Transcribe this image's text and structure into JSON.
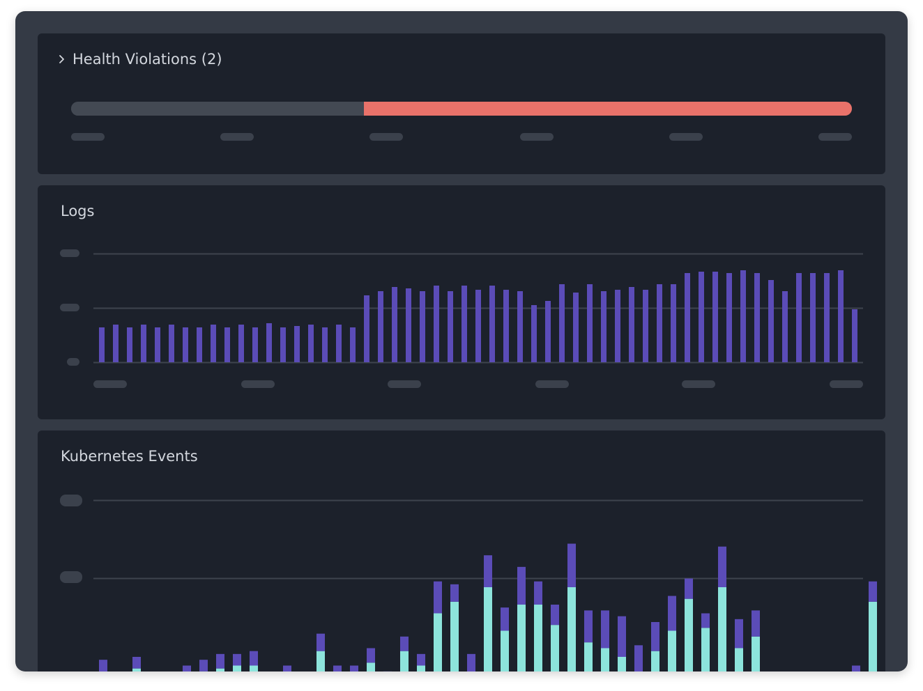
{
  "health": {
    "title": "Health Violations (2)",
    "ok_fraction": 0.375,
    "colors": {
      "ok": "#434953",
      "violation": "#e9726a"
    }
  },
  "logs": {
    "title": "Logs",
    "chart_data": {
      "type": "bar",
      "series": [
        {
          "color": "#5b4cb8",
          "values": [
            25,
            27,
            25,
            27,
            25,
            27,
            25,
            25,
            27,
            25,
            27,
            25,
            28,
            25,
            26,
            27,
            25,
            27,
            25,
            48,
            51,
            54,
            53,
            51,
            55,
            51,
            55,
            52,
            55,
            52,
            51,
            41,
            44,
            56,
            50,
            56,
            51,
            52,
            54,
            52,
            56,
            56,
            64,
            65,
            65,
            64,
            66,
            64,
            59,
            51,
            64,
            64,
            64,
            66,
            38
          ]
        }
      ],
      "ylim": [
        0,
        78
      ],
      "grid": true,
      "colors": {
        "bar": "#5b4cb8",
        "grid": "#3e444e"
      }
    }
  },
  "k8s": {
    "title": "Kubernetes Events",
    "chart_data": {
      "type": "bar",
      "stacked": true,
      "series": [
        {
          "color": "#8de4dc",
          "values": [
            12,
            6,
            14,
            9,
            2,
            11,
            13,
            14,
            15,
            15,
            6,
            11,
            5,
            20,
            10,
            11,
            16,
            8,
            20,
            15,
            33,
            37,
            12,
            42,
            27,
            36,
            36,
            29,
            42,
            23,
            21,
            18,
            12,
            20,
            27,
            38,
            28,
            42,
            21,
            25,
            0,
            0,
            0,
            0,
            0,
            11,
            37
          ]
        },
        {
          "color": "#5b4cb8",
          "values": [
            5,
            3,
            4,
            3,
            5,
            4,
            4,
            5,
            4,
            5,
            1,
            4,
            2,
            6,
            5,
            4,
            5,
            5,
            5,
            4,
            11,
            6,
            7,
            11,
            8,
            13,
            8,
            7,
            15,
            11,
            13,
            14,
            10,
            10,
            12,
            7,
            5,
            14,
            10,
            9,
            0,
            0,
            0,
            0,
            0,
            4,
            7
          ]
        }
      ],
      "ylim": [
        0,
        72
      ],
      "grid": true,
      "colors": {
        "grid": "#3e444e"
      }
    }
  }
}
